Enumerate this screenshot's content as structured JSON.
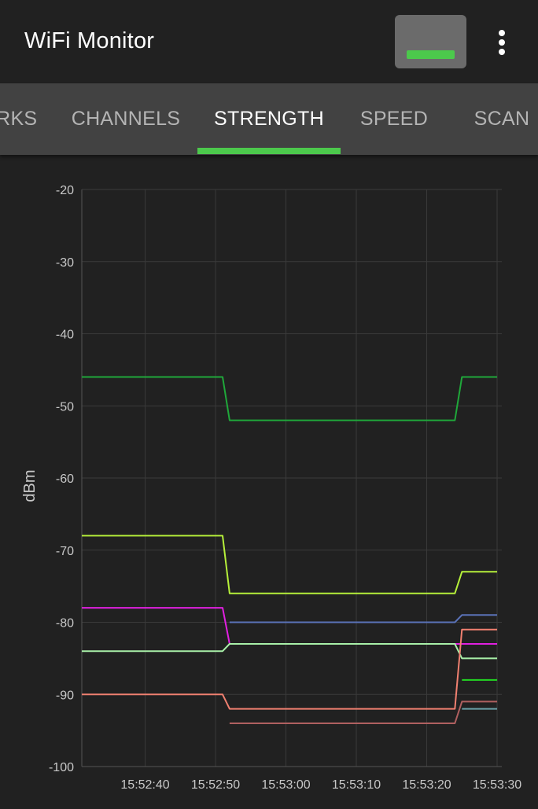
{
  "app": {
    "title": "WiFi Monitor"
  },
  "toolbar": {
    "signal_icon": "signal-bar-icon",
    "signal_color": "#4cc94c",
    "overflow_icon": "more-vert-icon"
  },
  "tabs": [
    {
      "label": "NETWORKS",
      "active": false
    },
    {
      "label": "CHANNELS",
      "active": false
    },
    {
      "label": "STRENGTH",
      "active": true
    },
    {
      "label": "SPEED",
      "active": false
    },
    {
      "label": "SCAN",
      "active": false
    }
  ],
  "accent_color": "#4cc94c",
  "chart_data": {
    "type": "line",
    "title": "",
    "xlabel": "",
    "ylabel": "dBm",
    "ylim": [
      -100,
      -20
    ],
    "xlim": [
      "15:52:31",
      "15:53:30"
    ],
    "yticks": [
      -20,
      -30,
      -40,
      -50,
      -60,
      -70,
      -80,
      -90,
      -100
    ],
    "xticks": [
      "15:52:40",
      "15:52:50",
      "15:53:00",
      "15:53:10",
      "15:53:20",
      "15:53:30"
    ],
    "grid": true,
    "legend": "none",
    "series": [
      {
        "color": "#1fa83a",
        "points": [
          [
            "15:52:31",
            -46
          ],
          [
            "15:52:51",
            -46
          ],
          [
            "15:52:52",
            -52
          ],
          [
            "15:53:24",
            -52
          ],
          [
            "15:53:25",
            -46
          ],
          [
            "15:53:30",
            -46
          ]
        ]
      },
      {
        "color": "#b6f03a",
        "points": [
          [
            "15:52:31",
            -68
          ],
          [
            "15:52:51",
            -68
          ],
          [
            "15:52:52",
            -76
          ],
          [
            "15:53:24",
            -76
          ],
          [
            "15:53:25",
            -73
          ],
          [
            "15:53:30",
            -73
          ]
        ]
      },
      {
        "color": "#e020e0",
        "points": [
          [
            "15:52:31",
            -78
          ],
          [
            "15:52:51",
            -78
          ],
          [
            "15:52:52",
            -83
          ],
          [
            "15:53:24",
            -83
          ],
          [
            "15:53:25",
            -83
          ],
          [
            "15:53:30",
            -83
          ]
        ]
      },
      {
        "color": "#5a72b8",
        "points": [
          [
            "15:52:52",
            -80
          ],
          [
            "15:53:24",
            -80
          ],
          [
            "15:53:25",
            -79
          ],
          [
            "15:53:30",
            -79
          ]
        ]
      },
      {
        "color": "#a8f0a8",
        "points": [
          [
            "15:52:31",
            -84
          ],
          [
            "15:52:51",
            -84
          ],
          [
            "15:52:52",
            -83
          ],
          [
            "15:53:24",
            -83
          ],
          [
            "15:53:25",
            -85
          ],
          [
            "15:53:30",
            -85
          ]
        ]
      },
      {
        "color": "#f08070",
        "points": [
          [
            "15:52:31",
            -90
          ],
          [
            "15:52:51",
            -90
          ],
          [
            "15:52:52",
            -92
          ],
          [
            "15:53:24",
            -92
          ],
          [
            "15:53:25",
            -81
          ],
          [
            "15:53:30",
            -81
          ]
        ]
      },
      {
        "color": "#b06060",
        "points": [
          [
            "15:52:52",
            -94
          ],
          [
            "15:53:24",
            -94
          ],
          [
            "15:53:25",
            -91
          ],
          [
            "15:53:30",
            -91
          ]
        ]
      },
      {
        "color": "#22d822",
        "points": [
          [
            "15:53:25",
            -88
          ],
          [
            "15:53:30",
            -88
          ]
        ]
      },
      {
        "color": "#6aa0a8",
        "points": [
          [
            "15:53:25",
            -92
          ],
          [
            "15:53:30",
            -92
          ]
        ]
      }
    ]
  }
}
